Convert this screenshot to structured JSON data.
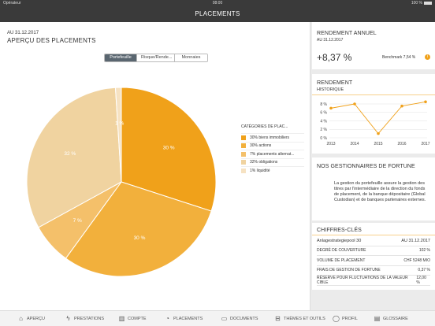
{
  "status": {
    "carrier": "Opérateur",
    "time": "08:00",
    "battery": "100 %"
  },
  "nav": {
    "title": "PLACEMENTS"
  },
  "overview": {
    "date": "AU 31.12.2017",
    "title": "APERÇU DES PLACEMENTS",
    "segments": [
      "Portefeuille",
      "Risque/Rende...",
      "Monnaies"
    ],
    "active_segment": 0
  },
  "chart_data": {
    "type": "pie",
    "legend_title": "CATÉGORIES DE PLAC...",
    "slices": [
      {
        "label": "30% biens immobiliers",
        "value": 30,
        "data_label": "30 %",
        "color": "#f0a11a"
      },
      {
        "label": "30% actions",
        "value": 30,
        "data_label": "30 %",
        "color": "#f2b03c"
      },
      {
        "label": "7% placements alternat...",
        "value": 7,
        "data_label": "7 %",
        "color": "#f4c06a"
      },
      {
        "label": "32% obligations",
        "value": 32,
        "data_label": "32 %",
        "color": "#f0d3a0"
      },
      {
        "label": "1% liquidité",
        "value": 1,
        "data_label": "1 %",
        "color": "#f6e2c2"
      }
    ]
  },
  "annual": {
    "title": "RENDEMENT ANNUEL",
    "date": "AU 31.12.2017",
    "value": "+8,37 %",
    "benchmark": "Benchmark 7,54 %",
    "info_icon": "info-icon"
  },
  "history": {
    "title": "RENDEMENT",
    "subtitle": "HISTORIQUE",
    "chart_data": {
      "type": "line",
      "x": [
        "2013",
        "2014",
        "2015",
        "2016",
        "2017"
      ],
      "values": [
        7,
        8,
        1,
        7.5,
        8.5
      ],
      "y_ticks": [
        "8 %",
        "6 %",
        "4 %",
        "2 %",
        "0 %"
      ],
      "ylim": [
        0,
        8
      ],
      "grid": true,
      "color": "#f0a11a"
    }
  },
  "managers": {
    "title": "NOS GESTIONNAIRES DE FORTUNE",
    "text": "La gestion du portefeuille assure la gestion des titres par l'intermédiaire de la direction du fonds de placement, de la banque dépositaire (Global Custodian) et de banques partenaires externes."
  },
  "keyfigures": {
    "title": "CHIFFRES-CLÉS",
    "rows": [
      {
        "label": "Anlagestrategiepool 30",
        "value": "AU 31.12.2017"
      },
      {
        "label": "DEGRÉ DE COUVERTURE",
        "value": "102 %"
      },
      {
        "label": "VOLUME DE PLACEMENT",
        "value": "CHF 5248 MIO"
      },
      {
        "label": "FRAIS DE GESTION DE FORTUNE",
        "value": "0,37 %"
      },
      {
        "label": "RÉSERVE POUR FLUCTUATIONS DE LA VALEUR CIBLE",
        "value": "12,00 %"
      }
    ]
  },
  "tabs": [
    {
      "label": "APERÇU",
      "icon": "home-icon",
      "glyph": "⌂"
    },
    {
      "label": "PRESTATIONS",
      "icon": "bolt-icon",
      "glyph": "ϟ"
    },
    {
      "label": "COMPTE",
      "icon": "chart-icon",
      "glyph": "▥"
    },
    {
      "label": "PLACEMENTS",
      "icon": "pie-icon",
      "glyph": "◔"
    },
    {
      "label": "DOCUMENTS",
      "icon": "folder-icon",
      "glyph": "▭"
    },
    {
      "label": "THÈMES ET OUTILS",
      "icon": "book-icon",
      "glyph": "⊟"
    },
    {
      "label": "PROFIL",
      "icon": "user-icon",
      "glyph": "◯"
    },
    {
      "label": "GLOSSAIRE",
      "icon": "glossary-icon",
      "glyph": "▤"
    }
  ],
  "active_tab": 3
}
